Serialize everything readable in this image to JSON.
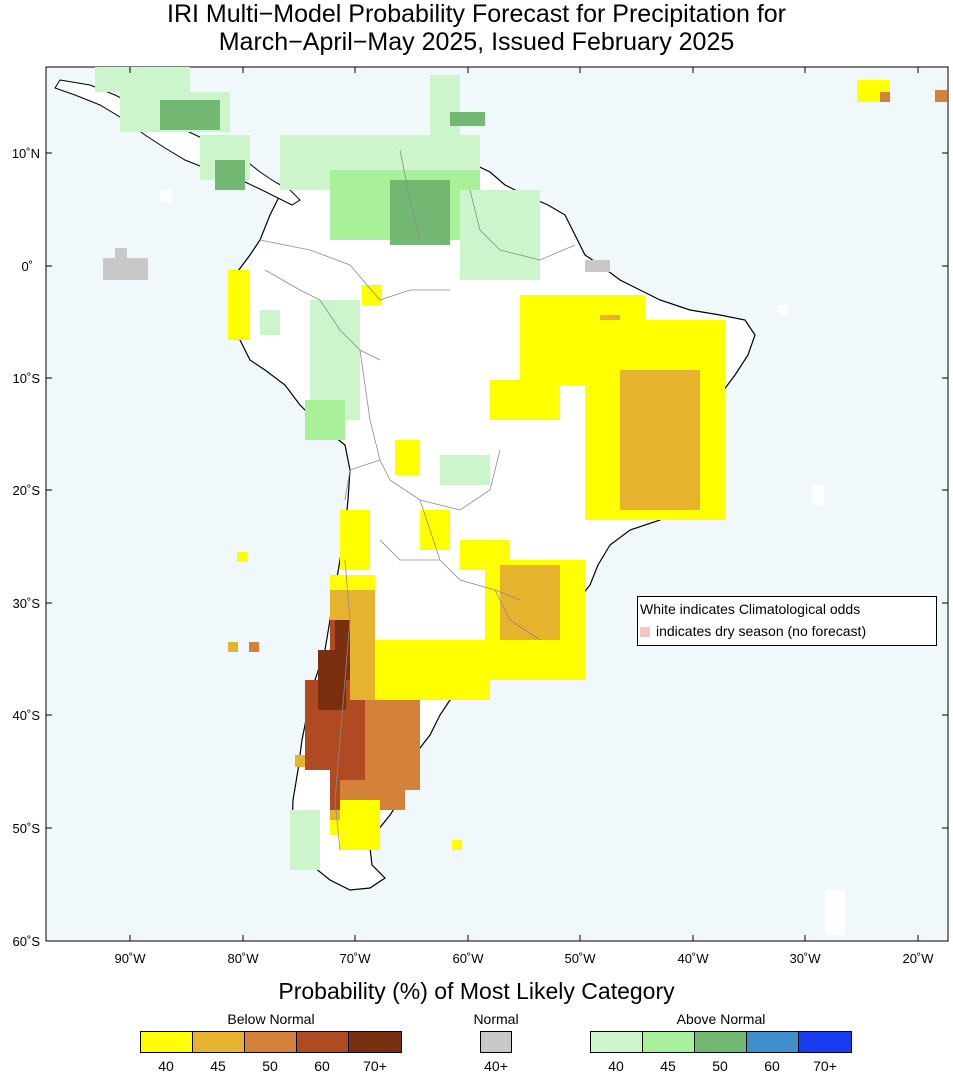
{
  "title_line1": "IRI Multi−Model Probability Forecast for Precipitation for",
  "title_line2": "March−April−May 2025, Issued February 2025",
  "map": {
    "lat_labels": [
      "10˚N",
      "0˚",
      "10˚S",
      "20˚S",
      "30˚S",
      "40˚S",
      "50˚S",
      "60˚S"
    ],
    "lon_labels": [
      "90˚W",
      "80˚W",
      "70˚W",
      "60˚W",
      "50˚W",
      "40˚W",
      "30˚W",
      "20˚W"
    ],
    "ocean_color": "#f0f8fc",
    "land_color": "#ffffff"
  },
  "note": {
    "line1": "White indicates Climatological odds",
    "line2": "indicates dry season (no forecast)",
    "dry_color": "#f4c6c6"
  },
  "legend": {
    "title": "Probability (%) of Most Likely Category",
    "below": {
      "label": "Below Normal",
      "ticks": [
        "40",
        "45",
        "50",
        "60",
        "70+"
      ],
      "colors": [
        "#ffff00",
        "#e6b32e",
        "#d4823a",
        "#b04a22",
        "#7a3010"
      ]
    },
    "normal": {
      "label": "Normal",
      "ticks": [
        "40+"
      ],
      "colors": [
        "#c8c8c8"
      ]
    },
    "above": {
      "label": "Above Normal",
      "ticks": [
        "40",
        "45",
        "50",
        "60",
        "70+"
      ],
      "colors": [
        "#ccf5cc",
        "#a8f09a",
        "#72b872",
        "#3e8fcc",
        "#1a3cf0"
      ]
    }
  }
}
